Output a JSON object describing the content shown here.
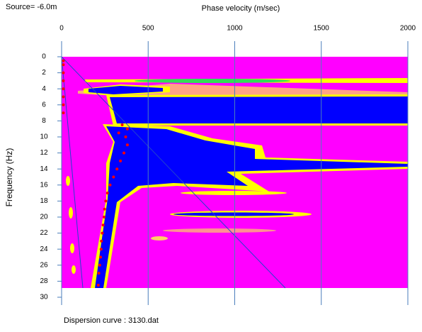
{
  "chart_data": {
    "type": "scatter",
    "title": "Source= -6.0m",
    "x_label": "Phase velocity (m/sec)",
    "y_label": "Frequency (Hz)",
    "footer": "Dispersion curve : 3130.dat",
    "xlim": [
      0,
      2000
    ],
    "xticks": [
      0,
      500,
      1000,
      1500,
      2000
    ],
    "ylim": [
      0,
      30
    ],
    "yticks": [
      0,
      2,
      4,
      6,
      8,
      10,
      12,
      14,
      16,
      18,
      20,
      22,
      24,
      26,
      28,
      30
    ],
    "y_inverted": true,
    "grid": true,
    "series": [
      {
        "color": "#ff0000",
        "x": [
          10,
          10,
          10,
          10,
          10,
          10,
          10,
          10,
          350,
          380,
          330,
          370,
          380,
          360,
          340,
          320,
          300,
          280,
          265,
          255,
          248,
          245,
          240,
          235,
          230,
          228,
          225,
          220,
          215,
          212
        ],
        "values": [
          0.5,
          1,
          2,
          3,
          4,
          5,
          6,
          7,
          8.5,
          9,
          9.5,
          10,
          11,
          12,
          13,
          14,
          15,
          16,
          17,
          18,
          19,
          20,
          21,
          22,
          23,
          24,
          25,
          26,
          27,
          28.5
        ]
      }
    ]
  }
}
